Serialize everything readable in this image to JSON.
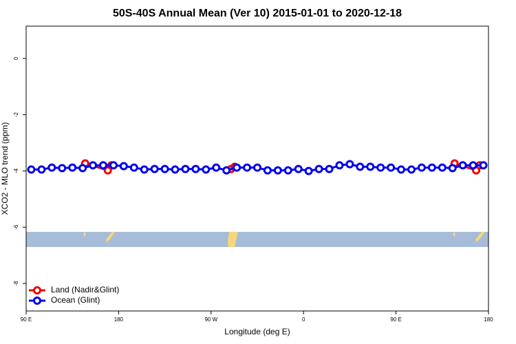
{
  "chart_data": {
    "type": "line",
    "title": "50S-40S Annual Mean (Ver 10)   2015-01-01 to 2020-12-18",
    "xlabel": "Longitude (deg E)",
    "ylabel": "XCO2 - MLO trend (ppm)",
    "xlim": [
      90,
      540
    ],
    "ylim": [
      -8.98,
      1.15
    ],
    "xticks": [
      {
        "value": 90,
        "label": "90 E"
      },
      {
        "value": 180,
        "label": "180"
      },
      {
        "value": 270,
        "label": "90 W"
      },
      {
        "value": 360,
        "label": "0"
      },
      {
        "value": 450,
        "label": "90 E"
      },
      {
        "value": 540,
        "label": "180"
      }
    ],
    "yticks": [
      0,
      -2,
      -4,
      -6,
      -8
    ],
    "legend": "bottom-left",
    "series": [
      {
        "name": "Land (Nadir&Glint)",
        "color": "#ee0000",
        "x": [
          147.5,
          169.5,
          173,
          null,
          289.5,
          293,
          null,
          507,
          528,
          531.5
        ],
        "values": [
          -3.73,
          -3.98,
          -3.8,
          null,
          -3.93,
          -3.85,
          null,
          -3.73,
          -3.98,
          -3.8
        ]
      },
      {
        "name": "Ocean (Glint)",
        "color": "#0000ee",
        "x": [
          95,
          105,
          115,
          125,
          135,
          145,
          155,
          165,
          175,
          185,
          195,
          205,
          215,
          225,
          235,
          245,
          255,
          265,
          275,
          285,
          295,
          305,
          315,
          325,
          335,
          345,
          355,
          365,
          375,
          385,
          395,
          405,
          415,
          425,
          435,
          445,
          455,
          465,
          475,
          485,
          495,
          505,
          515,
          525,
          535
        ],
        "values": [
          -3.95,
          -3.95,
          -3.88,
          -3.9,
          -3.88,
          -3.9,
          -3.8,
          -3.8,
          -3.8,
          -3.83,
          -3.88,
          -3.95,
          -3.93,
          -3.93,
          -3.95,
          -3.93,
          -3.93,
          -3.95,
          -3.88,
          -3.98,
          -3.88,
          -3.88,
          -3.88,
          -3.98,
          -3.98,
          -3.98,
          -3.93,
          -4.0,
          -3.93,
          -3.93,
          -3.8,
          -3.76,
          -3.85,
          -3.85,
          -3.88,
          -3.88,
          -3.95,
          -3.95,
          -3.88,
          -3.88,
          -3.88,
          -3.9,
          -3.8,
          -3.8,
          -3.8
        ]
      }
    ]
  }
}
